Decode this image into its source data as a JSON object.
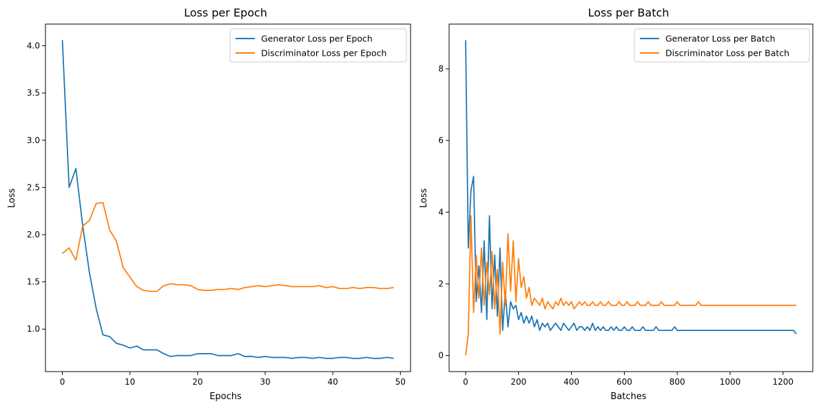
{
  "chart_data": [
    {
      "type": "line",
      "title": "Loss per Epoch",
      "xlabel": "Epochs",
      "ylabel": "Loss",
      "xlim": [
        -2.5,
        51.5
      ],
      "ylim": [
        0.55,
        4.23
      ],
      "xticks": [
        0,
        10,
        20,
        30,
        40,
        50
      ],
      "yticks": [
        1.0,
        1.5,
        2.0,
        2.5,
        3.0,
        3.5,
        4.0
      ],
      "xtick_labels": [
        "0",
        "10",
        "20",
        "30",
        "40",
        "50"
      ],
      "ytick_labels": [
        "1.0",
        "1.5",
        "2.0",
        "2.5",
        "3.0",
        "3.5",
        "4.0"
      ],
      "grid": false,
      "legend_position": "top-right",
      "x": [
        0,
        1,
        2,
        3,
        4,
        5,
        6,
        7,
        8,
        9,
        10,
        11,
        12,
        13,
        14,
        15,
        16,
        17,
        18,
        19,
        20,
        21,
        22,
        23,
        24,
        25,
        26,
        27,
        28,
        29,
        30,
        31,
        32,
        33,
        34,
        35,
        36,
        37,
        38,
        39,
        40,
        41,
        42,
        43,
        44,
        45,
        46,
        47,
        48,
        49
      ],
      "series": [
        {
          "name": "Generator Loss per Epoch",
          "color": "#1f77b4",
          "values": [
            4.06,
            2.5,
            2.7,
            2.1,
            1.6,
            1.22,
            0.94,
            0.92,
            0.85,
            0.83,
            0.8,
            0.82,
            0.78,
            0.78,
            0.78,
            0.74,
            0.71,
            0.72,
            0.72,
            0.72,
            0.74,
            0.74,
            0.74,
            0.72,
            0.72,
            0.72,
            0.74,
            0.71,
            0.71,
            0.7,
            0.71,
            0.7,
            0.7,
            0.7,
            0.69,
            0.7,
            0.7,
            0.69,
            0.7,
            0.69,
            0.69,
            0.7,
            0.7,
            0.69,
            0.69,
            0.7,
            0.69,
            0.69,
            0.7,
            0.69
          ]
        },
        {
          "name": "Discriminator Loss per Epoch",
          "color": "#ff7f0e",
          "values": [
            1.8,
            1.86,
            1.73,
            2.09,
            2.15,
            2.33,
            2.34,
            2.05,
            1.93,
            1.65,
            1.55,
            1.45,
            1.41,
            1.4,
            1.4,
            1.46,
            1.48,
            1.47,
            1.47,
            1.46,
            1.42,
            1.41,
            1.41,
            1.42,
            1.42,
            1.43,
            1.42,
            1.44,
            1.45,
            1.46,
            1.45,
            1.46,
            1.47,
            1.46,
            1.45,
            1.45,
            1.45,
            1.45,
            1.46,
            1.44,
            1.45,
            1.43,
            1.43,
            1.44,
            1.43,
            1.44,
            1.44,
            1.43,
            1.43,
            1.44
          ]
        }
      ]
    },
    {
      "type": "line",
      "title": "Loss per Batch",
      "xlabel": "Batches",
      "ylabel": "Loss",
      "xlim": [
        -62.5,
        1312.5
      ],
      "ylim": [
        -0.45,
        9.25
      ],
      "xticks": [
        0,
        200,
        400,
        600,
        800,
        1000,
        1200
      ],
      "yticks": [
        0,
        2,
        4,
        6,
        8
      ],
      "xtick_labels": [
        "0",
        "200",
        "400",
        "600",
        "800",
        "1000",
        "1200"
      ],
      "ytick_labels": [
        "0",
        "2",
        "4",
        "6",
        "8"
      ],
      "grid": false,
      "legend_position": "top-right",
      "x_step": 10,
      "series": [
        {
          "name": "Generator Loss per Batch",
          "color": "#1f77b4",
          "values": [
            8.8,
            3.0,
            4.6,
            5.0,
            1.5,
            2.5,
            1.2,
            3.2,
            1.0,
            3.9,
            1.3,
            2.8,
            1.1,
            3.0,
            0.7,
            1.8,
            0.8,
            1.5,
            1.3,
            1.4,
            1.0,
            1.2,
            0.9,
            1.1,
            0.9,
            1.1,
            0.8,
            1.0,
            0.7,
            0.9,
            0.8,
            0.9,
            0.7,
            0.8,
            0.9,
            0.8,
            0.7,
            0.9,
            0.8,
            0.7,
            0.8,
            0.9,
            0.7,
            0.8,
            0.8,
            0.7,
            0.8,
            0.7,
            0.9,
            0.7,
            0.8,
            0.7,
            0.8,
            0.7,
            0.7,
            0.8,
            0.7,
            0.8,
            0.7,
            0.7,
            0.8,
            0.7,
            0.7,
            0.8,
            0.7,
            0.7,
            0.7,
            0.8,
            0.7,
            0.7,
            0.7,
            0.7,
            0.8,
            0.7,
            0.7,
            0.7,
            0.7,
            0.7,
            0.7,
            0.8,
            0.7,
            0.7,
            0.7,
            0.7,
            0.7,
            0.7,
            0.7,
            0.7,
            0.7,
            0.7,
            0.7,
            0.7,
            0.7,
            0.7,
            0.7,
            0.7,
            0.7,
            0.7,
            0.7,
            0.7,
            0.7,
            0.7,
            0.7,
            0.7,
            0.7,
            0.7,
            0.7,
            0.7,
            0.7,
            0.7,
            0.7,
            0.7,
            0.7,
            0.7,
            0.7,
            0.7,
            0.7,
            0.7,
            0.7,
            0.7,
            0.7,
            0.7,
            0.7,
            0.7,
            0.7,
            0.6
          ]
        },
        {
          "name": "Discriminator Loss per Batch",
          "color": "#ff7f0e",
          "values": [
            0.0,
            0.6,
            3.9,
            1.2,
            2.8,
            1.6,
            3.0,
            1.4,
            2.6,
            1.7,
            2.9,
            1.3,
            2.4,
            0.6,
            2.6,
            1.4,
            3.4,
            1.8,
            3.2,
            1.5,
            2.7,
            1.9,
            2.2,
            1.6,
            1.9,
            1.4,
            1.6,
            1.5,
            1.4,
            1.6,
            1.3,
            1.5,
            1.4,
            1.3,
            1.5,
            1.4,
            1.6,
            1.4,
            1.5,
            1.4,
            1.5,
            1.3,
            1.4,
            1.5,
            1.4,
            1.5,
            1.4,
            1.4,
            1.5,
            1.4,
            1.4,
            1.5,
            1.4,
            1.4,
            1.5,
            1.4,
            1.4,
            1.4,
            1.5,
            1.4,
            1.4,
            1.5,
            1.4,
            1.4,
            1.4,
            1.5,
            1.4,
            1.4,
            1.4,
            1.5,
            1.4,
            1.4,
            1.4,
            1.4,
            1.5,
            1.4,
            1.4,
            1.4,
            1.4,
            1.4,
            1.5,
            1.4,
            1.4,
            1.4,
            1.4,
            1.4,
            1.4,
            1.4,
            1.5,
            1.4,
            1.4,
            1.4,
            1.4,
            1.4,
            1.4,
            1.4,
            1.4,
            1.4,
            1.4,
            1.4,
            1.4,
            1.4,
            1.4,
            1.4,
            1.4,
            1.4,
            1.4,
            1.4,
            1.4,
            1.4,
            1.4,
            1.4,
            1.4,
            1.4,
            1.4,
            1.4,
            1.4,
            1.4,
            1.4,
            1.4,
            1.4,
            1.4,
            1.4,
            1.4,
            1.4,
            1.4
          ]
        }
      ]
    }
  ]
}
